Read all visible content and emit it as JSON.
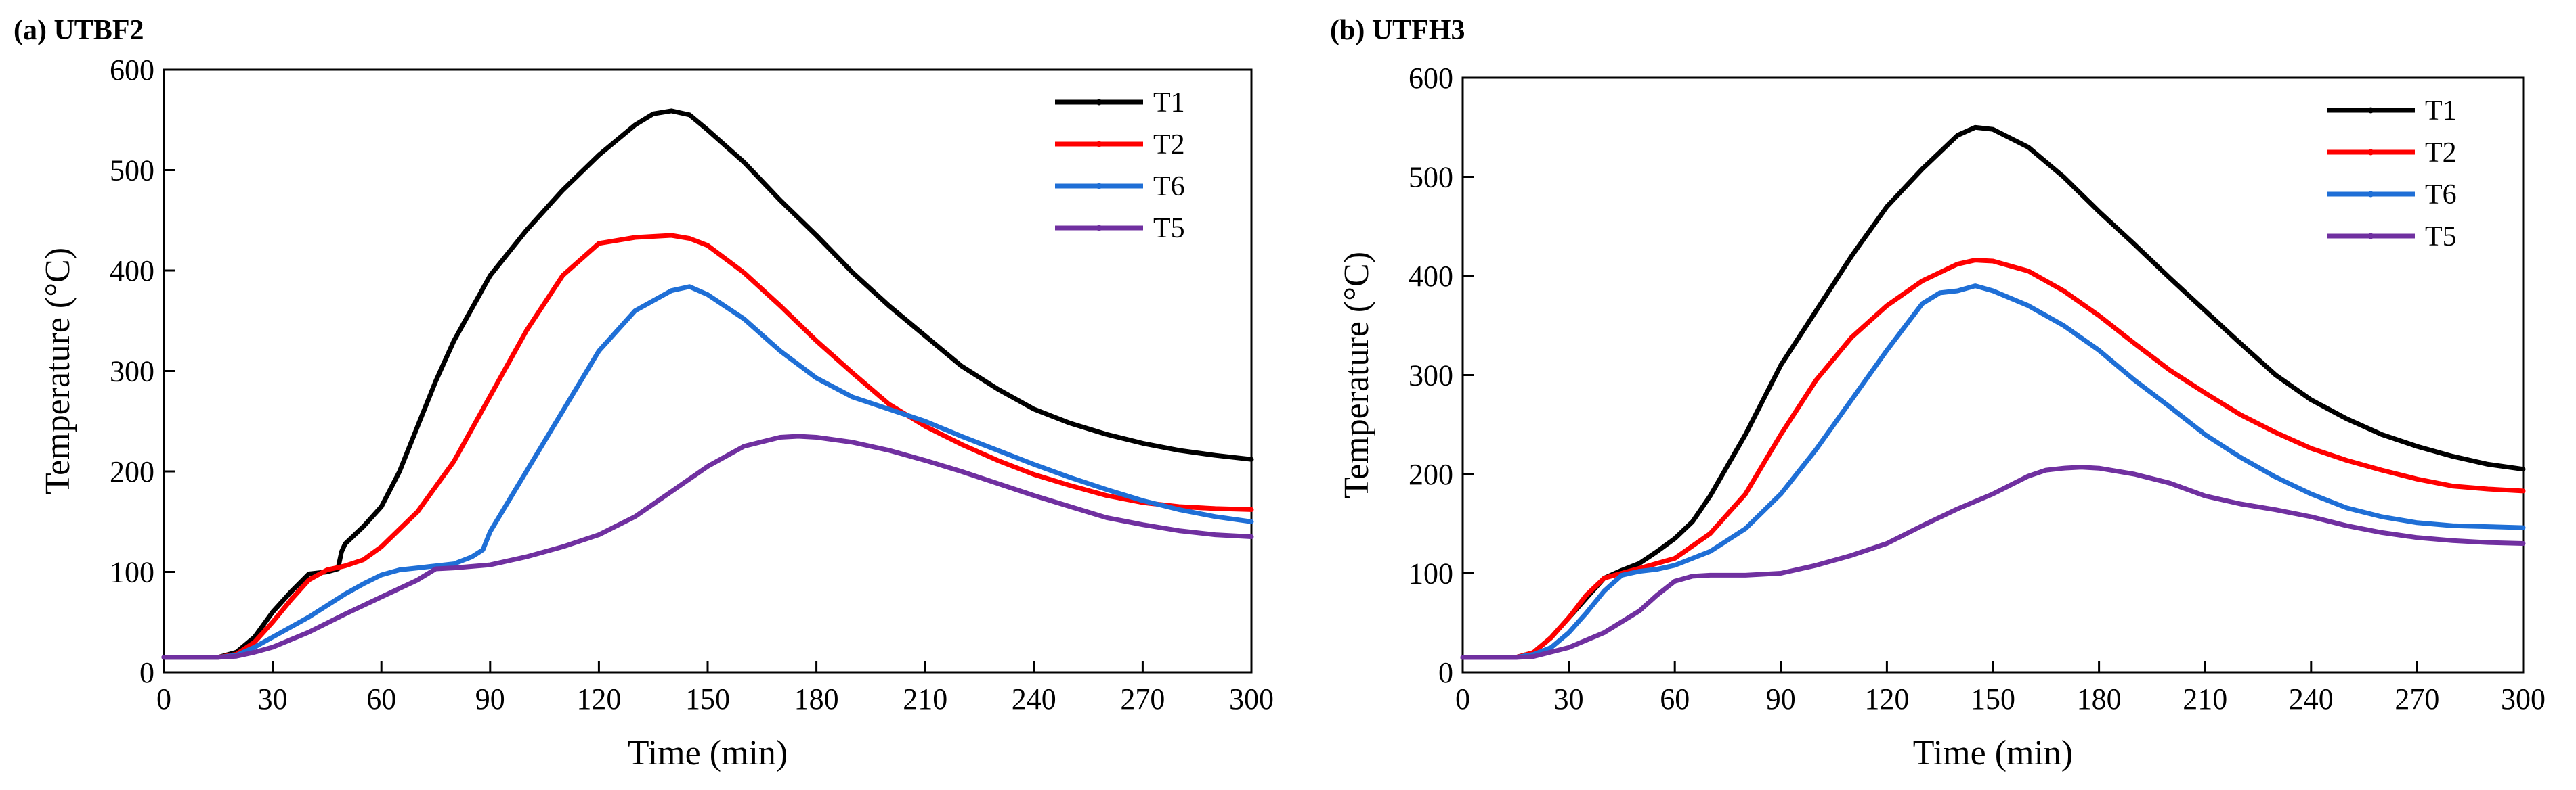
{
  "chart_data": [
    {
      "type": "line",
      "title": "(a) UTBF2",
      "xlabel": "Time (min)",
      "ylabel": "Temperature (°C)",
      "xlim": [
        0,
        300
      ],
      "ylim": [
        0,
        600
      ],
      "xticks": [
        0,
        30,
        60,
        90,
        120,
        150,
        180,
        210,
        240,
        270,
        300
      ],
      "yticks": [
        0,
        100,
        200,
        300,
        400,
        500,
        600
      ],
      "xtick_labels": [
        "0",
        "30",
        "60",
        "90",
        "120",
        "150",
        "180",
        "210",
        "240",
        "270",
        "300"
      ],
      "ytick_labels": [
        "0",
        "100",
        "200",
        "300",
        "400",
        "500",
        "600"
      ],
      "legend_position": "top-right",
      "grid": false,
      "series": [
        {
          "name": "T1",
          "color": "#000000",
          "x": [
            0,
            15,
            20,
            25,
            30,
            35,
            40,
            45,
            48,
            49,
            50,
            55,
            60,
            65,
            70,
            75,
            80,
            90,
            100,
            110,
            120,
            130,
            135,
            140,
            145,
            150,
            160,
            170,
            180,
            190,
            200,
            210,
            220,
            230,
            240,
            250,
            260,
            270,
            280,
            290,
            300
          ],
          "y": [
            15,
            15,
            20,
            35,
            60,
            80,
            98,
            100,
            103,
            120,
            128,
            145,
            165,
            200,
            245,
            290,
            330,
            395,
            440,
            480,
            515,
            545,
            556,
            559,
            555,
            540,
            508,
            470,
            435,
            398,
            365,
            335,
            305,
            282,
            262,
            248,
            237,
            228,
            221,
            216,
            212
          ]
        },
        {
          "name": "T2",
          "color": "#ff0000",
          "x": [
            0,
            15,
            20,
            25,
            30,
            35,
            40,
            45,
            50,
            55,
            60,
            70,
            80,
            90,
            100,
            110,
            120,
            130,
            140,
            145,
            150,
            160,
            170,
            180,
            190,
            200,
            210,
            220,
            230,
            240,
            250,
            260,
            270,
            280,
            290,
            300
          ],
          "y": [
            15,
            15,
            18,
            30,
            50,
            72,
            92,
            102,
            106,
            112,
            125,
            160,
            210,
            275,
            340,
            395,
            427,
            433,
            435,
            432,
            425,
            398,
            365,
            330,
            298,
            267,
            245,
            227,
            211,
            197,
            186,
            176,
            169,
            165,
            163,
            162
          ]
        },
        {
          "name": "T6",
          "color": "#1f6fd6",
          "x": [
            0,
            15,
            20,
            25,
            30,
            40,
            50,
            55,
            60,
            65,
            70,
            80,
            85,
            88,
            90,
            100,
            110,
            120,
            130,
            140,
            145,
            150,
            160,
            170,
            180,
            190,
            200,
            210,
            220,
            230,
            240,
            250,
            260,
            270,
            280,
            290,
            300
          ],
          "y": [
            15,
            15,
            17,
            25,
            35,
            55,
            78,
            88,
            97,
            102,
            104,
            108,
            115,
            122,
            140,
            200,
            260,
            320,
            360,
            380,
            384,
            376,
            352,
            320,
            293,
            274,
            262,
            250,
            235,
            221,
            207,
            194,
            182,
            171,
            162,
            155,
            150
          ]
        },
        {
          "name": "T5",
          "color": "#7030a0",
          "x": [
            0,
            15,
            20,
            25,
            30,
            40,
            50,
            60,
            70,
            75,
            80,
            90,
            100,
            110,
            120,
            130,
            140,
            150,
            160,
            170,
            175,
            180,
            190,
            200,
            210,
            220,
            230,
            240,
            250,
            260,
            270,
            280,
            290,
            300
          ],
          "y": [
            15,
            15,
            16,
            20,
            25,
            40,
            58,
            75,
            92,
            103,
            104,
            107,
            115,
            125,
            137,
            155,
            180,
            205,
            225,
            234,
            235,
            234,
            229,
            221,
            211,
            200,
            188,
            176,
            165,
            154,
            147,
            141,
            137,
            135
          ]
        }
      ]
    },
    {
      "type": "line",
      "title": "(b) UTFH3",
      "xlabel": "Time (min)",
      "ylabel": "Temperature (°C)",
      "xlim": [
        0,
        300
      ],
      "ylim": [
        0,
        600
      ],
      "xticks": [
        0,
        30,
        60,
        90,
        120,
        150,
        180,
        210,
        240,
        270,
        300
      ],
      "yticks": [
        0,
        100,
        200,
        300,
        400,
        500,
        600
      ],
      "xtick_labels": [
        "0",
        "30",
        "60",
        "90",
        "120",
        "150",
        "180",
        "210",
        "240",
        "270",
        "300"
      ],
      "ytick_labels": [
        "0",
        "100",
        "200",
        "300",
        "400",
        "500",
        "600"
      ],
      "legend_position": "top-right",
      "grid": false,
      "series": [
        {
          "name": "T1",
          "color": "#000000",
          "x": [
            0,
            15,
            20,
            25,
            30,
            35,
            40,
            45,
            50,
            55,
            60,
            65,
            70,
            80,
            90,
            100,
            110,
            120,
            130,
            140,
            145,
            150,
            160,
            170,
            180,
            190,
            200,
            210,
            220,
            230,
            240,
            250,
            260,
            270,
            280,
            290,
            300
          ],
          "y": [
            15,
            15,
            20,
            35,
            55,
            75,
            95,
            103,
            110,
            122,
            135,
            152,
            178,
            240,
            310,
            365,
            420,
            470,
            508,
            542,
            550,
            548,
            530,
            500,
            465,
            432,
            398,
            365,
            332,
            300,
            275,
            256,
            240,
            228,
            218,
            210,
            205
          ]
        },
        {
          "name": "T2",
          "color": "#ff0000",
          "x": [
            0,
            15,
            20,
            25,
            30,
            35,
            40,
            45,
            50,
            60,
            70,
            80,
            90,
            100,
            110,
            120,
            130,
            140,
            145,
            150,
            160,
            170,
            180,
            190,
            200,
            210,
            220,
            230,
            240,
            250,
            260,
            270,
            280,
            290,
            300
          ],
          "y": [
            15,
            15,
            20,
            35,
            55,
            78,
            95,
            100,
            105,
            115,
            140,
            180,
            240,
            295,
            338,
            370,
            395,
            412,
            416,
            415,
            405,
            385,
            360,
            332,
            305,
            282,
            260,
            242,
            226,
            214,
            204,
            195,
            188,
            185,
            183
          ]
        },
        {
          "name": "T6",
          "color": "#1f6fd6",
          "x": [
            0,
            15,
            20,
            25,
            30,
            35,
            40,
            45,
            50,
            55,
            60,
            70,
            80,
            90,
            100,
            110,
            120,
            130,
            135,
            140,
            145,
            150,
            160,
            170,
            180,
            190,
            200,
            210,
            220,
            230,
            240,
            250,
            260,
            270,
            280,
            290,
            300
          ],
          "y": [
            15,
            15,
            18,
            25,
            40,
            60,
            82,
            98,
            102,
            104,
            108,
            122,
            145,
            180,
            225,
            275,
            325,
            372,
            383,
            385,
            390,
            385,
            370,
            350,
            325,
            295,
            268,
            240,
            217,
            197,
            180,
            166,
            157,
            151,
            148,
            147,
            146
          ]
        },
        {
          "name": "T5",
          "color": "#7030a0",
          "x": [
            0,
            15,
            20,
            30,
            40,
            50,
            55,
            60,
            65,
            70,
            75,
            80,
            90,
            100,
            110,
            120,
            130,
            140,
            150,
            160,
            165,
            170,
            175,
            180,
            190,
            200,
            210,
            220,
            230,
            240,
            250,
            260,
            270,
            280,
            290,
            300
          ],
          "y": [
            15,
            15,
            16,
            25,
            40,
            62,
            78,
            92,
            97,
            98,
            98,
            98,
            100,
            108,
            118,
            130,
            148,
            165,
            180,
            198,
            204,
            206,
            207,
            206,
            200,
            191,
            178,
            170,
            164,
            157,
            148,
            141,
            136,
            133,
            131,
            130
          ]
        }
      ]
    }
  ]
}
